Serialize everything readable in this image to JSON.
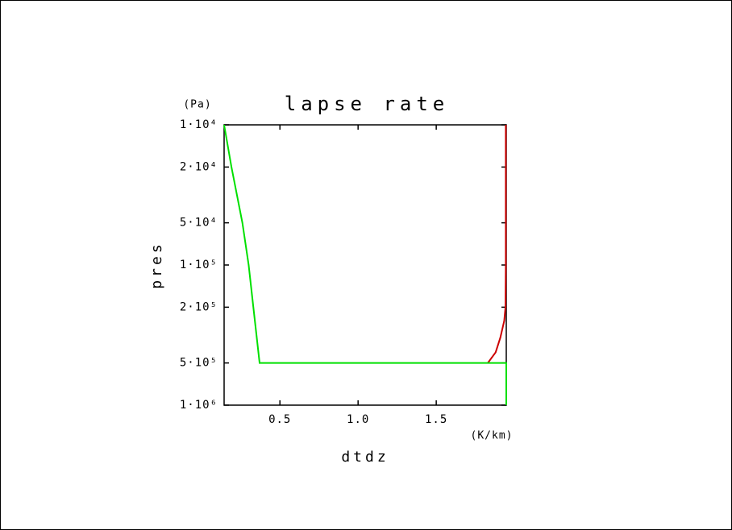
{
  "chart_data": {
    "type": "line",
    "title": "lapse rate",
    "xlabel": "dtdz",
    "ylabel": "pres",
    "xunit": "(K/km)",
    "yunit": "(Pa)",
    "xlim": [
      0.143,
      1.948
    ],
    "ylim": [
      10000,
      1000000
    ],
    "ylog": true,
    "yinverted": true,
    "xticks": [
      0.5,
      {
        "value": 1,
        "label": "1.0"
      },
      1.5
    ],
    "yticks": [
      {
        "value": 10000,
        "label": "1·10⁴"
      },
      {
        "value": 20000,
        "label": "2·10⁴"
      },
      {
        "value": 50000,
        "label": "5·10⁴"
      },
      {
        "value": 100000,
        "label": "1·10⁵"
      },
      {
        "value": 200000,
        "label": "2·10⁵"
      },
      {
        "value": 500000,
        "label": "5·10⁵"
      },
      {
        "value": 1000000,
        "label": "1·10⁶"
      }
    ],
    "series": [
      {
        "color": "#cc0000",
        "x": [
          1.945,
          1.945,
          1.943,
          1.935,
          1.91,
          1.88,
          1.83
        ],
        "values": [
          10000,
          100000,
          200000,
          250000,
          330000,
          420000,
          500000
        ]
      },
      {
        "color": "#00e000",
        "x": [
          0.143,
          0.19,
          0.26,
          0.3,
          0.33,
          0.37,
          1.948,
          1.948
        ],
        "values": [
          10000,
          20000,
          50000,
          100000,
          200000,
          500000,
          500000,
          1000000
        ]
      }
    ]
  }
}
